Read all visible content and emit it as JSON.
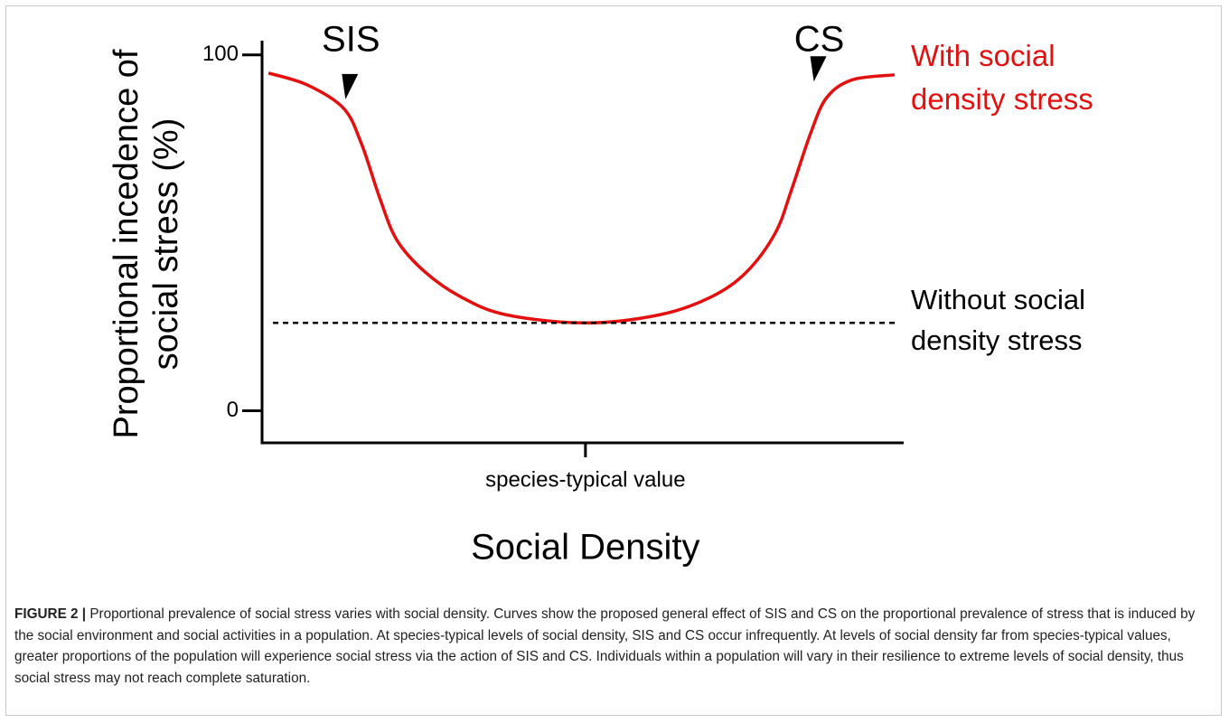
{
  "chart_data": {
    "type": "line",
    "ylabel": "Proportional incedence of social stress (%)",
    "xlabel": "Social Density",
    "ylim": [
      -9,
      104
    ],
    "yticks": [
      0,
      100
    ],
    "xlim": [
      0,
      100
    ],
    "xticks": [
      {
        "value": 50.4,
        "label": "species-typical value"
      }
    ],
    "annotations": [
      {
        "text": "SIS",
        "x": 13,
        "y": 86
      },
      {
        "text": "CS",
        "x": 86,
        "y": 91
      }
    ],
    "series": [
      {
        "name": "With social density stress",
        "color": "#e3100f",
        "style": "solid",
        "x": [
          1,
          7,
          12.7,
          15.5,
          18.3,
          21,
          25.4,
          31,
          38,
          50.4,
          62,
          70,
          75.5,
          80,
          82.5,
          85.5,
          88,
          92,
          98.6
        ],
        "values": [
          94.9,
          91.6,
          85,
          75,
          60,
          48,
          39,
          32,
          27,
          24.7,
          27,
          32,
          39,
          50,
          62,
          78,
          88,
          93,
          94.4
        ]
      },
      {
        "name": "Without social density stress",
        "color": "#000000",
        "style": "dashed",
        "x": [
          1.7,
          98.6
        ],
        "values": [
          24.7,
          24.7
        ]
      }
    ]
  },
  "caption": {
    "label": "FIGURE 2 |",
    "text": "Proportional prevalence of social stress varies with social density. Curves show the proposed general effect of SIS and CS on the proportional prevalence of stress that is induced by the social environment and social activities in a population. At species-typical levels of social density, SIS and CS occur infrequently. At levels of social density far from species-typical values, greater proportions of the population will experience social stress via the action of SIS and CS. Individuals within a population will vary in their resilience to extreme levels of social density, thus social stress may not reach complete saturation."
  }
}
